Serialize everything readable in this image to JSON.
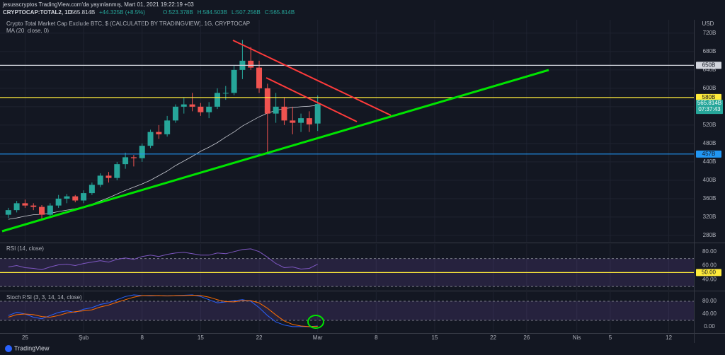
{
  "header": {
    "author_line": "jesusscryptos TradingView.com'da yayınlanmış, Mart 01, 2021 19:22:19 +03",
    "symbol": "CRYPTOCAP:TOTAL2, 1D",
    "price": "565.814B",
    "change": "+44.325B (+8.5%)",
    "ohlc": [
      "O:523.378B",
      "H:584.503B",
      "L:507.256B",
      "C:565.814B"
    ]
  },
  "footer": {
    "brand": "TradingView"
  },
  "chart_data": [
    {
      "type": "candlestick",
      "title": "Crypto Total Market Cap Exclude BTC, $ (CALCULATED BY TRADINGVIEW), 1G, CRYPTOCAP",
      "indicator": "MA (20, close, 0)",
      "currency": "USD",
      "x": [
        "2021-01-23",
        "2021-01-24",
        "2021-01-25",
        "2021-01-26",
        "2021-01-27",
        "2021-01-28",
        "2021-01-29",
        "2021-01-30",
        "2021-01-31",
        "2021-02-01",
        "2021-02-02",
        "2021-02-03",
        "2021-02-04",
        "2021-02-05",
        "2021-02-06",
        "2021-02-07",
        "2021-02-08",
        "2021-02-09",
        "2021-02-10",
        "2021-02-11",
        "2021-02-12",
        "2021-02-13",
        "2021-02-14",
        "2021-02-15",
        "2021-02-16",
        "2021-02-17",
        "2021-02-18",
        "2021-02-19",
        "2021-02-20",
        "2021-02-21",
        "2021-02-22",
        "2021-02-23",
        "2021-02-24",
        "2021-02-25",
        "2021-02-26",
        "2021-02-27",
        "2021-02-28",
        "2021-03-01"
      ],
      "open": [
        325,
        335,
        350,
        345,
        342,
        325,
        345,
        360,
        365,
        356,
        372,
        390,
        410,
        405,
        435,
        450,
        448,
        475,
        505,
        500,
        530,
        560,
        565,
        560,
        548,
        560,
        590,
        590,
        640,
        660,
        645,
        600,
        545,
        560,
        530,
        525,
        535,
        523.378
      ],
      "high": [
        340,
        355,
        358,
        350,
        346,
        350,
        368,
        370,
        368,
        378,
        395,
        415,
        418,
        440,
        460,
        455,
        480,
        510,
        520,
        540,
        565,
        580,
        590,
        568,
        570,
        600,
        605,
        650,
        705,
        690,
        660,
        610,
        590,
        580,
        560,
        545,
        550,
        584.503
      ],
      "low": [
        318,
        330,
        340,
        335,
        315,
        320,
        340,
        350,
        352,
        350,
        368,
        385,
        395,
        400,
        425,
        430,
        440,
        470,
        490,
        495,
        525,
        545,
        550,
        540,
        535,
        555,
        575,
        585,
        620,
        640,
        590,
        460,
        525,
        520,
        500,
        505,
        505,
        507.256
      ],
      "close": [
        335,
        350,
        345,
        342,
        325,
        345,
        360,
        365,
        356,
        372,
        390,
        410,
        405,
        435,
        450,
        448,
        475,
        505,
        500,
        530,
        560,
        565,
        560,
        548,
        560,
        590,
        590,
        640,
        660,
        645,
        600,
        545,
        560,
        530,
        525,
        535,
        521.489,
        565.814
      ],
      "ma": [
        315,
        318,
        322,
        325,
        326,
        328,
        332,
        335,
        338,
        342,
        348,
        355,
        362,
        370,
        378,
        385,
        392,
        400,
        410,
        420,
        432,
        442,
        452,
        463,
        472,
        482,
        494,
        505,
        518,
        528,
        538,
        546,
        552,
        556,
        558,
        560,
        561,
        563
      ],
      "up_color": "#26a69a",
      "down_color": "#ef5350",
      "ma_color": "#c8cbd3",
      "last_price_label": "565.814B",
      "countdown": "07:37:43",
      "xlim": [
        "2021-01-22",
        "2021-04-15"
      ],
      "xticks": [
        {
          "value": "2021-01-25",
          "label": "25"
        },
        {
          "value": "2021-02-01",
          "label": "Şub"
        },
        {
          "value": "2021-02-08",
          "label": "8"
        },
        {
          "value": "2021-02-15",
          "label": "15"
        },
        {
          "value": "2021-02-22",
          "label": "22"
        },
        {
          "value": "2021-03-01",
          "label": "Mar"
        },
        {
          "value": "2021-03-08",
          "label": "8"
        },
        {
          "value": "2021-03-15",
          "label": "15"
        },
        {
          "value": "2021-03-22",
          "label": "22"
        },
        {
          "value": "2021-03-26",
          "label": "26"
        },
        {
          "value": "2021-04-01",
          "label": "Nis"
        },
        {
          "value": "2021-04-05",
          "label": "5"
        },
        {
          "value": "2021-04-12",
          "label": "12"
        }
      ],
      "ylim": [
        266,
        749
      ],
      "yticks": [
        {
          "value": 280,
          "label": "280B"
        },
        {
          "value": 320,
          "label": "320B"
        },
        {
          "value": 360,
          "label": "360B"
        },
        {
          "value": 400,
          "label": "400B"
        },
        {
          "value": 440,
          "label": "440B"
        },
        {
          "value": 480,
          "label": "480B"
        },
        {
          "value": 520,
          "label": "520B"
        },
        {
          "value": 560,
          "label": "560B"
        },
        {
          "value": 600,
          "label": "600B"
        },
        {
          "value": 640,
          "label": "640B"
        },
        {
          "value": 680,
          "label": "680B"
        },
        {
          "value": 720,
          "label": "720B"
        }
      ],
      "levels": [
        {
          "value": 650,
          "label": "650B",
          "color": "#d1d4dc"
        },
        {
          "value": 580,
          "label": "580B",
          "color": "#ffeb3b"
        },
        {
          "value": 457,
          "label": "457B",
          "color": "#2196f3"
        }
      ],
      "grid": true
    },
    {
      "type": "line",
      "title": "RSI (14, close)",
      "series": [
        {
          "name": "RSI",
          "color": "#7e57c2",
          "values": [
            58,
            60,
            57,
            56,
            54,
            58,
            61,
            62,
            60,
            63,
            65,
            67,
            65,
            69,
            71,
            69,
            73,
            75,
            73,
            76,
            78,
            79,
            77,
            75,
            75,
            78,
            77,
            80,
            83,
            84,
            80,
            72,
            63,
            57,
            58,
            55,
            56,
            62
          ]
        }
      ],
      "ylim": [
        25,
        91
      ],
      "yticks": [
        {
          "value": 80,
          "label": "80.00"
        },
        {
          "value": 60,
          "label": "60.00"
        },
        {
          "value": 40,
          "label": "40.00"
        }
      ],
      "band": [
        30,
        70
      ],
      "levels": [
        {
          "value": 50,
          "label": "50.00",
          "color": "#ffeb3b"
        }
      ]
    },
    {
      "type": "line",
      "title": "Stoch RSI (3, 3, 14, 14, close)",
      "series": [
        {
          "name": "K",
          "color": "#2962ff",
          "values": [
            35,
            45,
            40,
            30,
            25,
            35,
            45,
            50,
            45,
            55,
            60,
            70,
            75,
            85,
            95,
            100,
            98,
            97,
            98,
            97,
            98,
            99,
            100,
            95,
            85,
            75,
            78,
            82,
            85,
            80,
            60,
            35,
            15,
            5,
            0,
            0,
            0,
            2
          ]
        },
        {
          "name": "D",
          "color": "#ff6d00",
          "values": [
            30,
            38,
            40,
            38,
            32,
            30,
            35,
            43,
            47,
            50,
            53,
            62,
            68,
            77,
            85,
            93,
            98,
            98,
            98,
            97,
            98,
            98,
            99,
            98,
            93,
            85,
            79,
            78,
            82,
            82,
            75,
            58,
            37,
            18,
            7,
            2,
            0,
            1
          ]
        }
      ],
      "ylim": [
        -18,
        109
      ],
      "yticks": [
        {
          "value": 80,
          "label": "80.00"
        },
        {
          "value": 40,
          "label": "40.00"
        },
        {
          "value": 0,
          "label": "0.00"
        }
      ],
      "band": [
        20,
        80
      ]
    }
  ]
}
